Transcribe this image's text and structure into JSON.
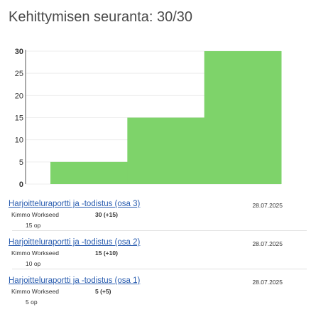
{
  "header": {
    "title": "Kehittymisen seuranta: 30/30"
  },
  "chart_data": {
    "type": "area",
    "yticks": [
      "0",
      "5",
      "10",
      "15",
      "20",
      "25",
      "30"
    ],
    "ylim": [
      0,
      30
    ],
    "steps": [
      5,
      15,
      30
    ],
    "color": "#7ed36a",
    "grid": true
  },
  "entries": [
    {
      "title": "Harjoitteluraportti ja -todistus (osa 3)",
      "date": "28.07.2025",
      "author": "Kimmo Workseed",
      "points": "30 (+15)",
      "credits": "15 op"
    },
    {
      "title": "Harjoitteluraportti ja -todistus (osa 2)",
      "date": "28.07.2025",
      "author": "Kimmo Workseed",
      "points": "15 (+10)",
      "credits": "10 op"
    },
    {
      "title": "Harjoitteluraportti ja -todistus (osa 1)",
      "date": "28.07.2025",
      "author": "Kimmo Workseed",
      "points": "5 (+5)",
      "credits": "5 op"
    }
  ]
}
